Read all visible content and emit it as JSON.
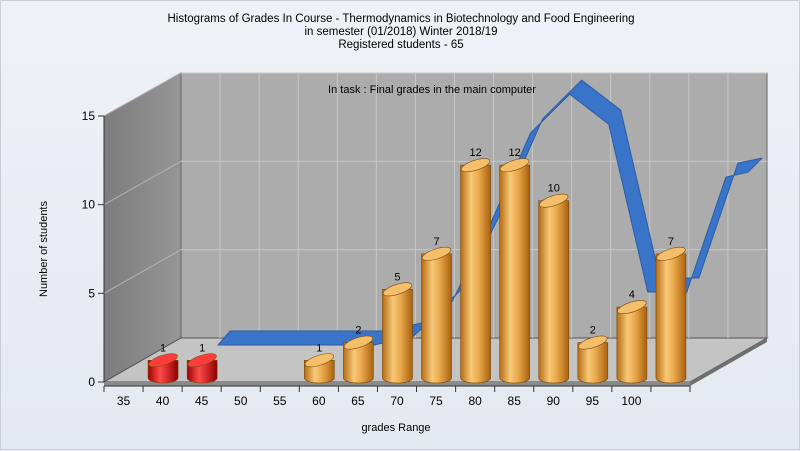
{
  "chart_data": {
    "type": "bar",
    "title_lines": [
      "Histograms of Grades  In Course - Thermodynamics in Biotechnology and Food Engineering",
      "in semester  (01/2018) Winter 2018/19",
      "Registered students - 65"
    ],
    "subtitle": "In task : Final grades in the main computer",
    "xlabel": "grades Range",
    "ylabel": "Number of students",
    "categories": [
      "35",
      "40",
      "45",
      "50",
      "55",
      "60",
      "65",
      "70",
      "75",
      "80",
      "85",
      "90",
      "95",
      "100"
    ],
    "values": [
      1,
      1,
      0,
      0,
      1,
      2,
      5,
      7,
      12,
      12,
      10,
      2,
      4,
      7
    ],
    "data_labels": [
      "1",
      "1",
      "",
      "",
      "1",
      "2",
      "5",
      "7",
      "12",
      "12",
      "10",
      "2",
      "4",
      "7"
    ],
    "ylim": [
      0,
      15
    ],
    "yticks": [
      0,
      5,
      10,
      15
    ],
    "grid": true,
    "series_colors": {
      "failing": "#e01010",
      "passing": "#e8a440",
      "trend": "#3a74c8"
    },
    "bar_color_by_category": [
      "failing",
      "failing",
      "passing",
      "passing",
      "passing",
      "passing",
      "passing",
      "passing",
      "passing",
      "passing",
      "passing",
      "passing",
      "passing",
      "passing"
    ],
    "trend_line": [
      0,
      0,
      0,
      0,
      0,
      0.5,
      2.5,
      7,
      12,
      14.2,
      12.5,
      3,
      3,
      9.5
    ]
  }
}
